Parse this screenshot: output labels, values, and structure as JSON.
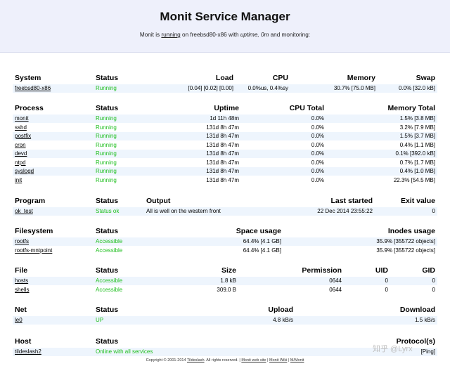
{
  "header": {
    "title": "Monit Service Manager",
    "sub_prefix": "Monit is ",
    "sub_running": "running",
    "sub_middle": " on freebsd80-x86 with ",
    "sub_uptime": "uptime, 0m",
    "sub_suffix": "  and monitoring:"
  },
  "system": {
    "headers": {
      "name": "System",
      "status": "Status",
      "load": "Load",
      "cpu": "CPU",
      "memory": "Memory",
      "swap": "Swap"
    },
    "rows": [
      {
        "name": "freebsd80-x86",
        "status": "Running",
        "load": "[0.04] [0.02] [0.00]",
        "cpu": "0.0%us, 0.4%sy",
        "memory": "30.7% [75.0 MB]",
        "swap": "0.0% [32.0 kB]"
      }
    ]
  },
  "process": {
    "headers": {
      "name": "Process",
      "status": "Status",
      "uptime": "Uptime",
      "cpu": "CPU Total",
      "memory": "Memory Total"
    },
    "rows": [
      {
        "name": "monit",
        "status": "Running",
        "uptime": "1d 11h 48m",
        "cpu": "0.0%",
        "memory": "1.5% [3.8 MB]"
      },
      {
        "name": "sshd",
        "status": "Running",
        "uptime": "131d 8h 47m",
        "cpu": "0.0%",
        "memory": "3.2% [7.9 MB]"
      },
      {
        "name": "postfix",
        "status": "Running",
        "uptime": "131d 8h 47m",
        "cpu": "0.0%",
        "memory": "1.5% [3.7 MB]"
      },
      {
        "name": "cron",
        "status": "Running",
        "uptime": "131d 8h 47m",
        "cpu": "0.0%",
        "memory": "0.4% [1.1 MB]"
      },
      {
        "name": "devd",
        "status": "Running",
        "uptime": "131d 8h 47m",
        "cpu": "0.0%",
        "memory": "0.1% [392.0 kB]"
      },
      {
        "name": "ntpd",
        "status": "Running",
        "uptime": "131d 8h 47m",
        "cpu": "0.0%",
        "memory": "0.7% [1.7 MB]"
      },
      {
        "name": "syslogd",
        "status": "Running",
        "uptime": "131d 8h 47m",
        "cpu": "0.0%",
        "memory": "0.4% [1.0 MB]"
      },
      {
        "name": "init",
        "status": "Running",
        "uptime": "131d 8h 47m",
        "cpu": "0.0%",
        "memory": "22.3% [54.5 MB]"
      }
    ]
  },
  "program": {
    "headers": {
      "name": "Program",
      "status": "Status",
      "output": "Output",
      "last": "Last started",
      "exit": "Exit value"
    },
    "rows": [
      {
        "name": "ok_test",
        "status": "Status ok",
        "output": "All is well on the western front",
        "last": "22 Dec 2014 23:55:22",
        "exit": "0"
      }
    ]
  },
  "filesystem": {
    "headers": {
      "name": "Filesystem",
      "status": "Status",
      "space": "Space usage",
      "inodes": "Inodes usage"
    },
    "rows": [
      {
        "name": "rootfs",
        "status": "Accessible",
        "space": "64.4% [4.1 GB]",
        "inodes": "35.9% [355722 objects]"
      },
      {
        "name": "rootfs-mntpoint",
        "status": "Accessible",
        "space": "64.4% [4.1 GB]",
        "inodes": "35.9% [355722 objects]"
      }
    ]
  },
  "file": {
    "headers": {
      "name": "File",
      "status": "Status",
      "size": "Size",
      "perm": "Permission",
      "uid": "UID",
      "gid": "GID"
    },
    "rows": [
      {
        "name": "hosts",
        "status": "Accessible",
        "size": "1.8 kB",
        "perm": "0644",
        "uid": "0",
        "gid": "0"
      },
      {
        "name": "shells",
        "status": "Accessible",
        "size": "309.0 B",
        "perm": "0644",
        "uid": "0",
        "gid": "0"
      }
    ]
  },
  "net": {
    "headers": {
      "name": "Net",
      "status": "Status",
      "upload": "Upload",
      "download": "Download"
    },
    "rows": [
      {
        "name": "le0",
        "status": "UP",
        "upload": "4.8 kB/s",
        "download": "1.5 kB/s"
      }
    ]
  },
  "host": {
    "headers": {
      "name": "Host",
      "status": "Status",
      "protocol": "Protocol(s)"
    },
    "rows": [
      {
        "name": "tildeslash2",
        "status": "Online with all services",
        "protocol": "[Ping]"
      }
    ]
  },
  "footer": {
    "copyright": "Copyright © 2001-2014 ",
    "company": "Tildeslash",
    "rights": ". All rights reserved.",
    "sep": " | ",
    "web": "Monit web site",
    "wiki": "Monit Wiki",
    "mmonit": "M/Monit"
  },
  "watermark": "知乎 @Lyrx",
  "colors": {
    "status_ok": "#1fbf1f",
    "row_alt": "#eef5fd",
    "header_bg": "#eef0fb"
  }
}
